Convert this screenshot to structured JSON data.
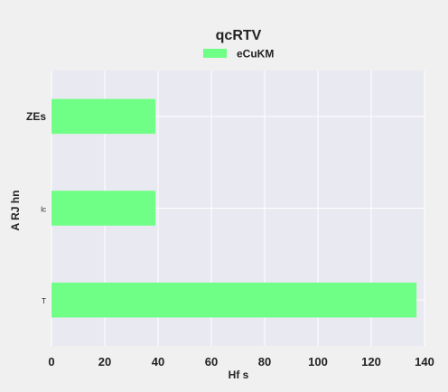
{
  "chart_data": {
    "type": "bar",
    "orientation": "horizontal",
    "title": "qcRTV",
    "xlabel": "Hf  s",
    "ylabel": "A RJ hn",
    "categories": [
      "ZEs",
      "lc",
      "T"
    ],
    "series": [
      {
        "name": "eCuKM",
        "values": [
          39,
          39,
          137
        ],
        "color": "#70ff86"
      }
    ],
    "xlim": [
      0,
      140
    ],
    "xticks": [
      0,
      20,
      40,
      60,
      80,
      100,
      120,
      140
    ],
    "grid": true,
    "legend_position": "top-center",
    "plot_background": "#e9e9f1",
    "grid_color": "#ffffff"
  }
}
